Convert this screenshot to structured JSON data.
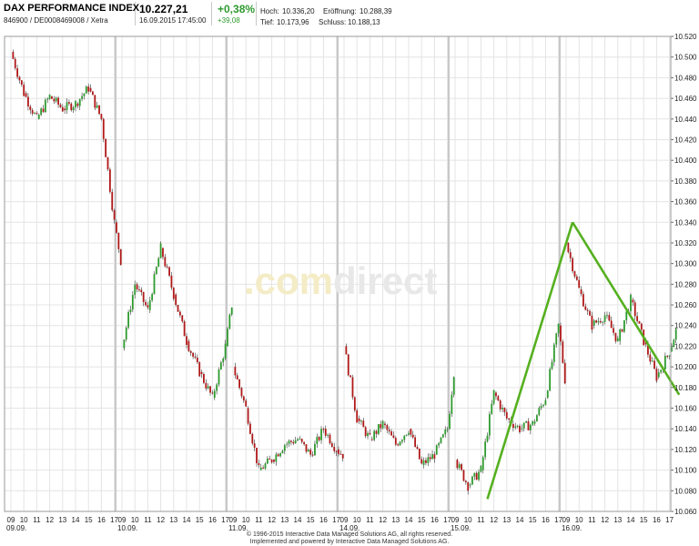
{
  "header": {
    "title": "DAX PERFORMANCE INDEX",
    "subtitle": "846900 / DE0008469008 / Xetra",
    "price": "10.227,21",
    "datetime": "16.09.2015 17:45:00",
    "change_pct": "+0,38%",
    "change_abs": "+39,08",
    "high_label": "Hoch:",
    "high_value": "10.336,20",
    "low_label": "Tief:",
    "low_value": "10.173,96",
    "open_label": "Eröffnung:",
    "open_value": "10.288,39",
    "close_label": "Schluss:",
    "close_value": "10.188,13"
  },
  "watermark": {
    "part1": ".com",
    "part2": "direct"
  },
  "footer": {
    "line1": "© 1996-2015 Interactive Data Managed Solutions AG, all rights reserved.",
    "line2": "Implemented and powered by Interactive Data Managed Solutions AG."
  },
  "colors": {
    "up": "#2e9a2e",
    "down": "#b01818",
    "trendline": "#55b020",
    "grid": "#e4e4e4",
    "day_separator": "#c8c8c8",
    "change_positive": "#2e9a2e"
  },
  "chart_data": {
    "type": "line",
    "subtype": "candlestick",
    "title": "DAX PERFORMANCE INDEX",
    "xlabel": "",
    "ylabel": "",
    "ylim": [
      10060,
      10520
    ],
    "y_ticks": [
      "10.520",
      "10.500",
      "10.480",
      "10.460",
      "10.440",
      "10.420",
      "10.400",
      "10.380",
      "10.360",
      "10.340",
      "10.320",
      "10.300",
      "10.280",
      "10.260",
      "10.240",
      "10.220",
      "10.200",
      "10.180",
      "10.160",
      "10.140",
      "10.120",
      "10.100",
      "10.080",
      "10.060"
    ],
    "y_axis_position": "right",
    "grid": true,
    "days": [
      {
        "date": "09.09.",
        "hours": [
          "09",
          "10",
          "11",
          "12",
          "13",
          "14",
          "15",
          "16",
          "17"
        ]
      },
      {
        "date": "10.09.",
        "hours": [
          "09",
          "10",
          "11",
          "12",
          "13",
          "14",
          "15",
          "16",
          "17"
        ]
      },
      {
        "date": "11.09.",
        "hours": [
          "09",
          "10",
          "11",
          "12",
          "13",
          "14",
          "15",
          "16",
          "17"
        ]
      },
      {
        "date": "14.09.",
        "hours": [
          "09",
          "10",
          "11",
          "12",
          "13",
          "14",
          "15",
          "16",
          "17"
        ]
      },
      {
        "date": "15.09.",
        "hours": [
          "09",
          "10",
          "11",
          "12",
          "13",
          "14",
          "15",
          "16",
          "17"
        ]
      },
      {
        "date": "16.09.",
        "hours": [
          "09",
          "10",
          "11",
          "12",
          "13",
          "14",
          "15",
          "16",
          "17"
        ]
      }
    ],
    "series": [
      {
        "x": [
          "09.09. 09:00",
          "09.09. 10:00",
          "09.09. 11:00",
          "09.09. 12:00",
          "09.09. 13:00",
          "09.09. 14:00",
          "09.09. 15:00",
          "09.09. 16:00",
          "09.09. 17:00",
          "09.09. 17:30",
          "10.09. 09:00",
          "10.09. 10:00",
          "10.09. 11:00",
          "10.09. 12:00",
          "10.09. 13:00",
          "10.09. 14:00",
          "10.09. 15:00",
          "10.09. 16:00",
          "10.09. 17:00",
          "10.09. 17:30",
          "11.09. 09:00",
          "11.09. 10:00",
          "11.09. 11:00",
          "11.09. 12:00",
          "11.09. 13:00",
          "11.09. 14:00",
          "11.09. 15:00",
          "11.09. 16:00",
          "11.09. 17:00",
          "11.09. 17:30",
          "14.09. 09:00",
          "14.09. 10:00",
          "14.09. 11:00",
          "14.09. 12:00",
          "14.09. 13:00",
          "14.09. 14:00",
          "14.09. 15:00",
          "14.09. 16:00",
          "14.09. 17:00",
          "14.09. 17:30",
          "15.09. 09:00",
          "15.09. 10:00",
          "15.09. 11:00",
          "15.09. 12:00",
          "15.09. 13:00",
          "15.09. 14:00",
          "15.09. 15:00",
          "15.09. 16:00",
          "15.09. 17:00",
          "15.09. 17:30",
          "16.09. 09:00",
          "16.09. 10:00",
          "16.09. 11:00",
          "16.09. 12:00",
          "16.09. 13:00",
          "16.09. 14:00",
          "16.09. 15:00",
          "16.09. 16:00",
          "16.09. 17:00",
          "16.09. 17:30"
        ],
        "values": [
          10505,
          10465,
          10440,
          10462,
          10450,
          10455,
          10470,
          10440,
          10340,
          10303,
          10218,
          10280,
          10255,
          10315,
          10270,
          10225,
          10195,
          10170,
          10220,
          10260,
          10200,
          10160,
          10100,
          10110,
          10125,
          10130,
          10115,
          10140,
          10120,
          10115,
          10220,
          10150,
          10130,
          10145,
          10125,
          10140,
          10105,
          10115,
          10140,
          10195,
          10110,
          10085,
          10100,
          10175,
          10150,
          10140,
          10145,
          10170,
          10240,
          10188,
          10320,
          10275,
          10240,
          10250,
          10225,
          10265,
          10225,
          10190,
          10215,
          10235
        ]
      }
    ],
    "trendlines": [
      {
        "from": [
          "15.09. 11:30",
          10072
        ],
        "to": [
          "16.09. 09:30",
          10340
        ]
      },
      {
        "from": [
          "16.09. 09:30",
          10340
        ],
        "to": [
          "16.09. 17:45",
          10173
        ]
      }
    ]
  }
}
